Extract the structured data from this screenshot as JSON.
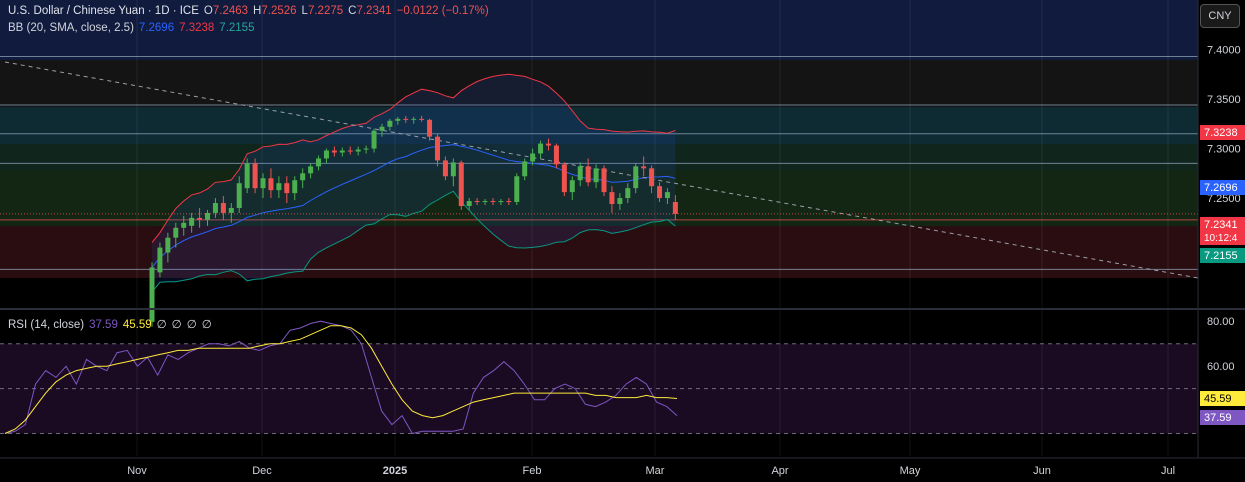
{
  "header": {
    "symbol_title": "U.S. Dollar / Chinese Yuan · 1D · ICE",
    "open_label": "O",
    "open_value": "7.2463",
    "high_label": "H",
    "high_value": "7.2526",
    "low_label": "L",
    "low_value": "7.2275",
    "close_label": "C",
    "close_value": "7.2341",
    "change": "−0.0122 (−0.17%)",
    "bb_label": "BB (20, SMA, close, 2.5)",
    "bb_basis": "7.2696",
    "bb_upper": "7.3238",
    "bb_lower": "7.2155",
    "rsi_label": "RSI (14, close)",
    "rsi_value": "37.59",
    "rsi_ma": "45.59",
    "rsi_extra": [
      "∅",
      "∅",
      "∅",
      "∅"
    ]
  },
  "currency_button": "CNY",
  "price_tags": {
    "upper": "7.3238",
    "basis": "7.2696",
    "last": "7.2341",
    "countdown": "10:12:4",
    "lower": "7.2155",
    "rsi_ma": "45.59",
    "rsi": "37.59"
  },
  "colors": {
    "bullish": "#26a69a",
    "bearish": "#ef5350",
    "up_candle": "#4caf50",
    "upper_band": "#f23645",
    "basis": "#2962ff",
    "lower_band": "#089981",
    "rsi_line": "#7e57c2",
    "rsi_ma": "#ffeb3b"
  },
  "chart_data": {
    "type": "candlestick",
    "price_axis": {
      "ticks": [
        "7.4000",
        "7.3500",
        "7.3000",
        "7.2500"
      ],
      "range": [
        7.14,
        7.45
      ]
    },
    "time_axis": {
      "labels": [
        "Nov",
        "Dec",
        "2025",
        "Feb",
        "Mar",
        "Apr",
        "May",
        "Jun",
        "Jul"
      ]
    },
    "candles": [
      [
        7.125,
        7.185,
        7.12,
        7.18
      ],
      [
        7.175,
        7.205,
        7.17,
        7.2
      ],
      [
        7.195,
        7.215,
        7.185,
        7.21
      ],
      [
        7.21,
        7.225,
        7.2,
        7.22
      ],
      [
        7.22,
        7.232,
        7.212,
        7.225
      ],
      [
        7.222,
        7.235,
        7.215,
        7.23
      ],
      [
        7.23,
        7.24,
        7.22,
        7.228
      ],
      [
        7.228,
        7.238,
        7.222,
        7.235
      ],
      [
        7.235,
        7.25,
        7.23,
        7.245
      ],
      [
        7.245,
        7.252,
        7.228,
        7.235
      ],
      [
        7.235,
        7.245,
        7.225,
        7.24
      ],
      [
        7.24,
        7.272,
        7.235,
        7.265
      ],
      [
        7.26,
        7.29,
        7.255,
        7.285
      ],
      [
        7.285,
        7.29,
        7.255,
        7.26
      ],
      [
        7.26,
        7.275,
        7.25,
        7.27
      ],
      [
        7.27,
        7.28,
        7.25,
        7.258
      ],
      [
        7.258,
        7.272,
        7.25,
        7.265
      ],
      [
        7.265,
        7.272,
        7.245,
        7.255
      ],
      [
        7.255,
        7.272,
        7.248,
        7.268
      ],
      [
        7.268,
        7.28,
        7.26,
        7.275
      ],
      [
        7.275,
        7.285,
        7.27,
        7.282
      ],
      [
        7.282,
        7.293,
        7.278,
        7.29
      ],
      [
        7.29,
        7.3,
        7.285,
        7.298
      ],
      [
        7.298,
        7.302,
        7.292,
        7.296
      ],
      [
        7.296,
        7.301,
        7.292,
        7.298
      ],
      [
        7.298,
        7.302,
        7.294,
        7.297
      ],
      [
        7.297,
        7.302,
        7.293,
        7.299
      ],
      [
        7.299,
        7.303,
        7.295,
        7.3
      ],
      [
        7.3,
        7.32,
        7.296,
        7.318
      ],
      [
        7.318,
        7.325,
        7.312,
        7.322
      ],
      [
        7.322,
        7.33,
        7.318,
        7.328
      ],
      [
        7.328,
        7.332,
        7.324,
        7.33
      ],
      [
        7.33,
        7.333,
        7.326,
        7.329
      ],
      [
        7.329,
        7.332,
        7.325,
        7.33
      ],
      [
        7.33,
        7.333,
        7.327,
        7.329
      ],
      [
        7.329,
        7.33,
        7.308,
        7.312
      ],
      [
        7.312,
        7.315,
        7.282,
        7.288
      ],
      [
        7.288,
        7.292,
        7.268,
        7.272
      ],
      [
        7.272,
        7.29,
        7.262,
        7.286
      ],
      [
        7.286,
        7.288,
        7.238,
        7.242
      ],
      [
        7.242,
        7.25,
        7.238,
        7.247
      ],
      [
        7.247,
        7.25,
        7.243,
        7.246
      ],
      [
        7.246,
        7.249,
        7.243,
        7.247
      ],
      [
        7.247,
        7.25,
        7.243,
        7.246
      ],
      [
        7.246,
        7.249,
        7.243,
        7.247
      ],
      [
        7.247,
        7.25,
        7.243,
        7.246
      ],
      [
        7.246,
        7.275,
        7.243,
        7.272
      ],
      [
        7.272,
        7.29,
        7.268,
        7.287
      ],
      [
        7.287,
        7.3,
        7.283,
        7.295
      ],
      [
        7.295,
        7.308,
        7.29,
        7.305
      ],
      [
        7.305,
        7.31,
        7.298,
        7.303
      ],
      [
        7.303,
        7.305,
        7.28,
        7.284
      ],
      [
        7.284,
        7.286,
        7.252,
        7.256
      ],
      [
        7.256,
        7.272,
        7.248,
        7.268
      ],
      [
        7.268,
        7.286,
        7.262,
        7.282
      ],
      [
        7.282,
        7.29,
        7.262,
        7.266
      ],
      [
        7.266,
        7.284,
        7.26,
        7.28
      ],
      [
        7.28,
        7.283,
        7.252,
        7.256
      ],
      [
        7.256,
        7.262,
        7.235,
        7.244
      ],
      [
        7.244,
        7.255,
        7.238,
        7.25
      ],
      [
        7.25,
        7.265,
        7.245,
        7.26
      ],
      [
        7.26,
        7.285,
        7.255,
        7.282
      ],
      [
        7.282,
        7.292,
        7.272,
        7.28
      ],
      [
        7.28,
        7.283,
        7.255,
        7.262
      ],
      [
        7.262,
        7.266,
        7.246,
        7.25
      ],
      [
        7.25,
        7.26,
        7.244,
        7.256
      ],
      [
        7.246,
        7.253,
        7.228,
        7.234
      ]
    ],
    "bollinger": {
      "upper_last": 7.3238,
      "basis_last": 7.2696,
      "lower_last": 7.2155
    },
    "horizontal_levels": [
      7.393,
      7.344,
      7.315,
      7.285,
      7.228,
      7.178
    ],
    "rsi": {
      "axis_ticks": [
        "80.00",
        "60.00"
      ],
      "range": [
        20,
        85
      ],
      "levels": [
        70,
        50,
        30
      ],
      "rsi_last": 37.59,
      "ma_last": 45.59,
      "rsi_values": [
        30,
        31,
        34,
        52,
        58,
        55,
        60,
        52,
        63,
        60,
        58,
        66,
        67,
        60,
        64,
        56,
        65,
        63,
        66,
        68,
        70,
        70,
        69,
        71,
        68,
        67,
        69,
        70,
        76,
        77,
        79,
        80,
        79,
        78,
        76,
        70,
        55,
        40,
        34,
        38,
        30,
        31,
        31,
        31,
        31,
        32,
        48,
        55,
        58,
        62,
        58,
        52,
        45,
        45,
        50,
        52,
        50,
        43,
        42,
        44,
        47,
        52,
        55,
        52,
        44,
        42,
        38
      ],
      "ma_values": [
        30,
        32,
        36,
        42,
        48,
        53,
        56,
        58,
        59,
        60,
        60,
        61,
        62,
        63,
        64,
        65,
        66,
        67,
        67,
        68,
        68,
        68,
        68,
        68,
        68,
        69,
        70,
        70,
        71,
        72,
        74,
        76,
        78,
        78,
        77,
        74,
        68,
        60,
        52,
        45,
        40,
        38,
        37,
        38,
        40,
        42,
        44,
        45,
        46,
        47,
        48,
        48,
        48,
        48,
        48,
        48,
        48,
        48,
        47,
        47,
        46,
        46,
        46,
        47,
        46,
        46,
        45.6
      ]
    }
  }
}
